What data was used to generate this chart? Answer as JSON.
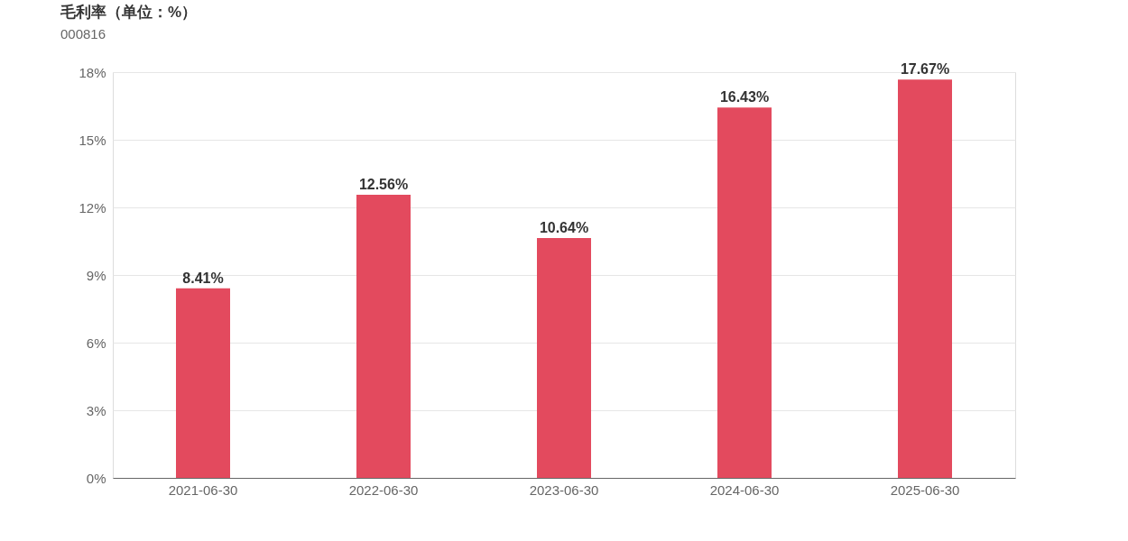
{
  "chart_data": {
    "type": "bar",
    "title": "毛利率（单位：%）",
    "subtitle": "000816",
    "categories": [
      "2021-06-30",
      "2022-06-30",
      "2023-06-30",
      "2024-06-30",
      "2025-06-30"
    ],
    "values": [
      8.41,
      12.56,
      10.64,
      16.43,
      17.67
    ],
    "value_labels": [
      "8.41%",
      "12.56%",
      "10.64%",
      "16.43%",
      "17.67%"
    ],
    "color": "#e34a5e",
    "ylim": [
      0,
      18
    ],
    "yticks": [
      {
        "value": 0,
        "label": "0%"
      },
      {
        "value": 3,
        "label": "3%"
      },
      {
        "value": 6,
        "label": "6%"
      },
      {
        "value": 9,
        "label": "9%"
      },
      {
        "value": 12,
        "label": "12%"
      },
      {
        "value": 15,
        "label": "15%"
      },
      {
        "value": 18,
        "label": "18%"
      }
    ],
    "grid": "y"
  }
}
